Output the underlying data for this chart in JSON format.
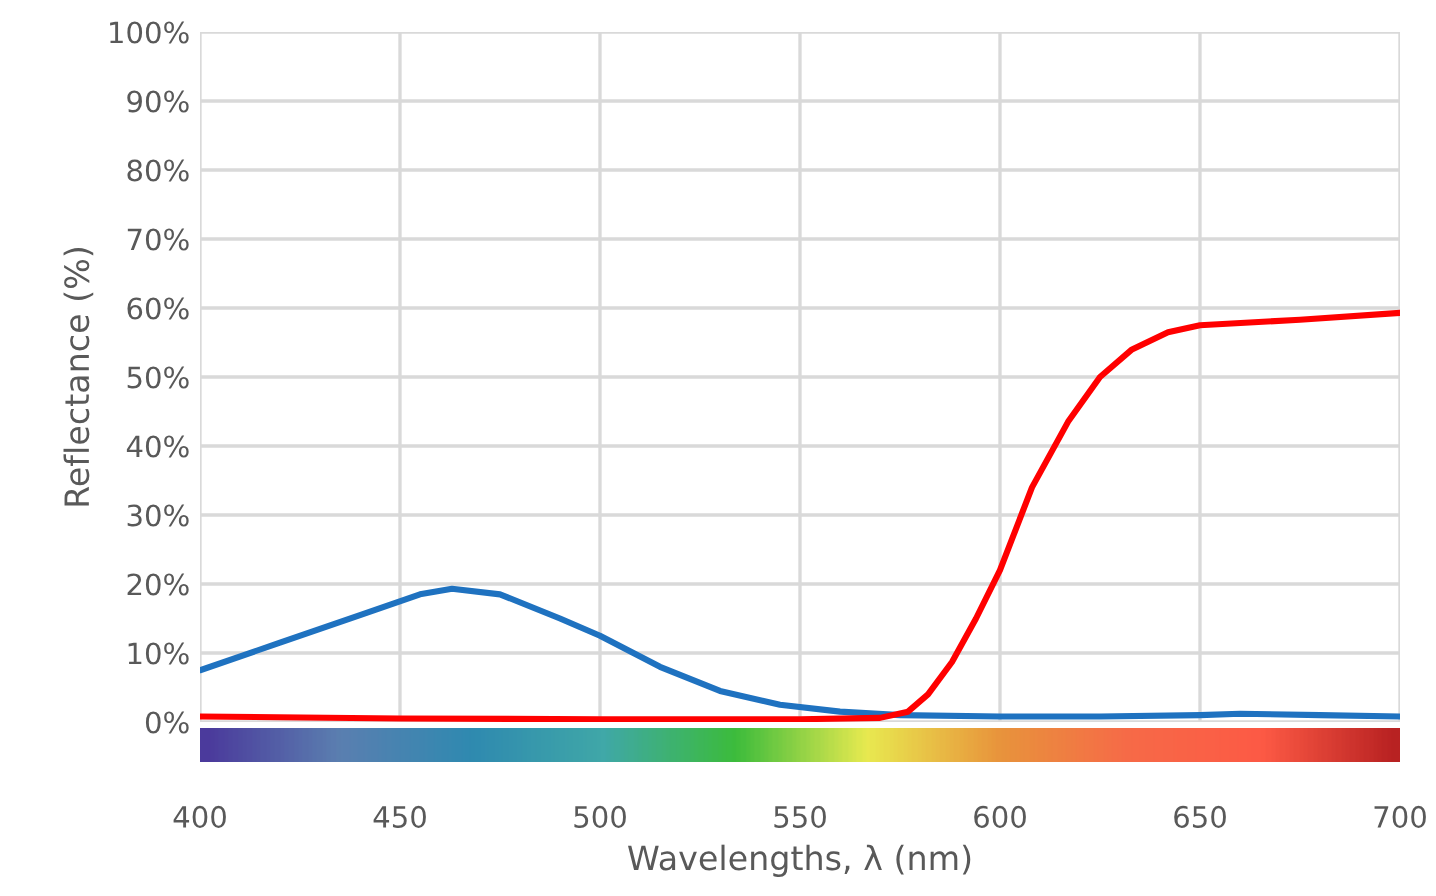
{
  "chart_data": {
    "type": "line",
    "xlabel": "Wavelengths, λ (nm)",
    "ylabel": "Reflectance (%)",
    "xlim": [
      400,
      700
    ],
    "xticks": [
      400,
      450,
      500,
      550,
      600,
      650,
      700
    ],
    "ylim": [
      0,
      100
    ],
    "yticks": [
      {
        "value": 0,
        "label": "0%"
      },
      {
        "value": 10,
        "label": "10%"
      },
      {
        "value": 20,
        "label": "20%"
      },
      {
        "value": 30,
        "label": "30%"
      },
      {
        "value": 40,
        "label": "40%"
      },
      {
        "value": 50,
        "label": "50%"
      },
      {
        "value": 60,
        "label": "60%"
      },
      {
        "value": 70,
        "label": "70%"
      },
      {
        "value": 80,
        "label": "80%"
      },
      {
        "value": 90,
        "label": "90%"
      },
      {
        "value": 100,
        "label": "100%"
      }
    ],
    "grid": true,
    "legend": false,
    "series": [
      {
        "color": "#1f72c0",
        "x": [
          400,
          420,
          440,
          455,
          463,
          475,
          490,
          500,
          515,
          530,
          545,
          560,
          575,
          600,
          625,
          650,
          660,
          680,
          700
        ],
        "values": [
          7.5,
          11.5,
          15.5,
          18.5,
          19.3,
          18.5,
          15,
          12.5,
          8,
          4.5,
          2.5,
          1.5,
          1,
          0.8,
          0.8,
          1,
          1.2,
          1,
          0.8
        ]
      },
      {
        "color": "#ff0000",
        "x": [
          400,
          450,
          500,
          550,
          570,
          577,
          582,
          588,
          594,
          600,
          608,
          617,
          625,
          633,
          642,
          650,
          675,
          700
        ],
        "values": [
          0.8,
          0.5,
          0.4,
          0.4,
          0.6,
          1.5,
          4,
          8.7,
          15,
          22,
          34,
          43.5,
          50,
          54,
          56.5,
          57.5,
          58.3,
          59.3
        ]
      }
    ]
  }
}
